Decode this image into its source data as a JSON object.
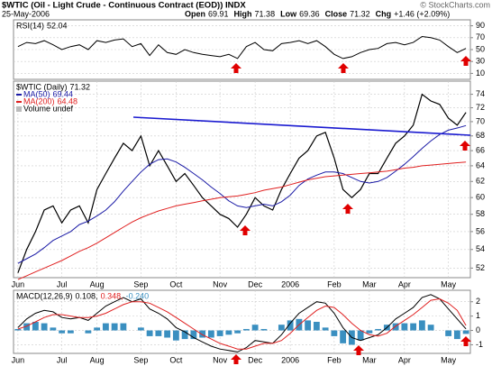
{
  "header": {
    "symbol_title": "$WTIC (Oil - Light Crude - Continuous Contract (EOD)) INDX",
    "date": "25-May-2006",
    "credit": "© StockCharts.com",
    "quote": [
      {
        "label": "Open",
        "value": "69.91"
      },
      {
        "label": "High",
        "value": "71.38"
      },
      {
        "label": "Low",
        "value": "69.36"
      },
      {
        "label": "Close",
        "value": "71.32"
      },
      {
        "label": "Chg",
        "value": "+1.46 (+2.09%)"
      }
    ]
  },
  "chart_data": [
    {
      "type": "line",
      "panel": "rsi",
      "ylim": [
        0,
        100
      ],
      "yticks": [
        10,
        30,
        50,
        70,
        90
      ],
      "grid": true,
      "series": [
        {
          "name": "RSI(14)",
          "color": "#000000",
          "values": [
            55,
            62,
            60,
            65,
            58,
            50,
            55,
            58,
            50,
            65,
            62,
            66,
            68,
            55,
            60,
            40,
            58,
            45,
            42,
            50,
            45,
            42,
            40,
            38,
            42,
            35,
            55,
            62,
            50,
            48,
            60,
            62,
            65,
            60,
            65,
            55,
            42,
            35,
            38,
            45,
            50,
            52,
            60,
            62,
            58,
            62,
            72,
            70,
            66,
            55,
            45,
            52.04
          ]
        }
      ]
    },
    {
      "type": "line",
      "panel": "price",
      "log": true,
      "ylim": [
        51,
        76
      ],
      "yticks": [
        52,
        54,
        56,
        58,
        60,
        62,
        64,
        66,
        68,
        70,
        72,
        74
      ],
      "grid": true,
      "categories": [
        "Jun",
        null,
        null,
        null,
        null,
        "Jul",
        null,
        null,
        null,
        "Aug",
        null,
        null,
        null,
        null,
        "Sep",
        null,
        null,
        null,
        "Oct",
        null,
        null,
        null,
        null,
        "Nov",
        null,
        null,
        null,
        "Dec",
        null,
        null,
        null,
        "2006",
        null,
        null,
        null,
        null,
        "Feb",
        null,
        null,
        null,
        "Mar",
        null,
        null,
        null,
        "Apr",
        null,
        null,
        null,
        null,
        "May",
        null,
        null
      ],
      "volume_label": "Volume undef",
      "series": [
        {
          "name": "$WTIC (Daily)",
          "color": "#000000",
          "values": [
            51.5,
            54,
            56,
            58.5,
            59,
            57,
            58.5,
            59,
            57,
            61,
            63,
            65,
            67,
            66,
            68,
            64,
            66,
            64,
            62,
            63,
            61.5,
            60,
            59,
            58,
            57.5,
            56.5,
            58,
            60,
            59,
            58.5,
            61,
            63,
            65,
            66,
            68,
            68.5,
            65,
            61,
            60,
            61,
            63,
            63,
            65,
            67,
            68,
            69.5,
            74,
            73,
            72.5,
            70.5,
            69.5,
            71.32
          ]
        },
        {
          "name": "MA(50)",
          "color": "#1a1aa6",
          "values": [
            52.5,
            53,
            53.5,
            54.2,
            55,
            55.5,
            56,
            56.8,
            57.2,
            57.8,
            58.5,
            59.5,
            60.8,
            62,
            63.2,
            64.2,
            64.8,
            64.9,
            64.5,
            63.8,
            63,
            62.2,
            61.3,
            60.5,
            59.6,
            59,
            58.8,
            59,
            59.2,
            59,
            59.5,
            60.3,
            61.5,
            62.3,
            62.8,
            63.2,
            63.2,
            63,
            62.5,
            62,
            61.8,
            62,
            62.5,
            63.3,
            64.2,
            65.2,
            66.3,
            67.3,
            68.2,
            68.8,
            69.1,
            69.44
          ]
        },
        {
          "name": "MA(200)",
          "color": "#e02020",
          "values": [
            50.8,
            51.2,
            51.6,
            52,
            52.4,
            52.8,
            53.3,
            53.8,
            54.2,
            54.7,
            55.3,
            55.9,
            56.5,
            57.1,
            57.6,
            58,
            58.4,
            58.7,
            59,
            59.2,
            59.4,
            59.6,
            59.8,
            60,
            60.1,
            60.2,
            60.4,
            60.6,
            60.9,
            61.1,
            61.3,
            61.6,
            61.9,
            62.2,
            62.4,
            62.6,
            62.7,
            62.8,
            62.9,
            63,
            63.1,
            63.2,
            63.3,
            63.5,
            63.7,
            63.8,
            64,
            64.1,
            64.2,
            64.3,
            64.4,
            64.48
          ]
        }
      ]
    },
    {
      "type": "macd",
      "panel": "macd",
      "ylim": [
        -1.6,
        2.8
      ],
      "yticks": [
        -1,
        0,
        1,
        2
      ],
      "grid": true,
      "categories": [
        "Jun",
        null,
        null,
        null,
        null,
        "Jul",
        null,
        null,
        null,
        "Aug",
        null,
        null,
        null,
        null,
        "Sep",
        null,
        null,
        null,
        "Oct",
        null,
        null,
        null,
        null,
        "Nov",
        null,
        null,
        null,
        "Dec",
        null,
        null,
        null,
        "2006",
        null,
        null,
        null,
        null,
        "Feb",
        null,
        null,
        null,
        "Mar",
        null,
        null,
        null,
        "Apr",
        null,
        null,
        null,
        null,
        "May",
        null,
        null
      ],
      "label": "MACD(12,26,9)",
      "readout": [
        "0.108,",
        "0.348,",
        "-0.240"
      ],
      "series": [
        {
          "name": "MACD",
          "color": "#000000",
          "style": "line",
          "values": [
            0.2,
            0.8,
            1.2,
            1.4,
            1.3,
            0.9,
            0.8,
            0.9,
            0.7,
            1.2,
            1.7,
            2.0,
            2.3,
            2.0,
            2.2,
            1.5,
            1.2,
            0.8,
            0.2,
            -0.1,
            -0.5,
            -0.8,
            -1.1,
            -1.3,
            -1.4,
            -1.5,
            -1.2,
            -0.7,
            -0.8,
            -0.9,
            -0.3,
            0.5,
            1.2,
            1.6,
            2.0,
            1.9,
            1.2,
            0.2,
            -0.5,
            -0.7,
            -0.5,
            -0.3,
            0.2,
            0.8,
            1.2,
            1.6,
            2.3,
            2.5,
            2.2,
            1.5,
            0.8,
            0.108
          ]
        },
        {
          "name": "Signal",
          "color": "#e02020",
          "style": "line",
          "values": [
            0.1,
            0.3,
            0.6,
            0.9,
            1.1,
            1.1,
            1.0,
            0.9,
            0.9,
            1.0,
            1.2,
            1.5,
            1.8,
            2.0,
            2.0,
            1.9,
            1.6,
            1.3,
            0.9,
            0.5,
            0.1,
            -0.3,
            -0.6,
            -0.9,
            -1.1,
            -1.3,
            -1.3,
            -1.1,
            -0.9,
            -0.9,
            -0.7,
            -0.2,
            0.4,
            0.9,
            1.4,
            1.7,
            1.6,
            1.1,
            0.5,
            0.0,
            -0.3,
            -0.4,
            -0.2,
            0.3,
            0.7,
            1.1,
            1.6,
            2.1,
            2.2,
            1.9,
            1.4,
            0.348
          ]
        },
        {
          "name": "Histogram",
          "color": "#3a8fc0",
          "style": "bar",
          "values": [
            0.1,
            0.5,
            0.6,
            0.5,
            0.2,
            -0.2,
            -0.2,
            0,
            -0.2,
            0.2,
            0.5,
            0.5,
            0.5,
            0,
            0.2,
            -0.4,
            -0.4,
            -0.5,
            -0.7,
            -0.6,
            -0.6,
            -0.5,
            -0.5,
            -0.4,
            -0.3,
            -0.2,
            0.1,
            0.4,
            0.1,
            0,
            0.4,
            0.7,
            0.8,
            0.7,
            0.6,
            0.2,
            -0.4,
            -0.9,
            -1.0,
            -0.7,
            -0.2,
            0.1,
            0.4,
            0.5,
            0.5,
            0.5,
            0.7,
            0.4,
            0,
            -0.4,
            -0.6,
            -0.24
          ]
        }
      ]
    }
  ]
}
